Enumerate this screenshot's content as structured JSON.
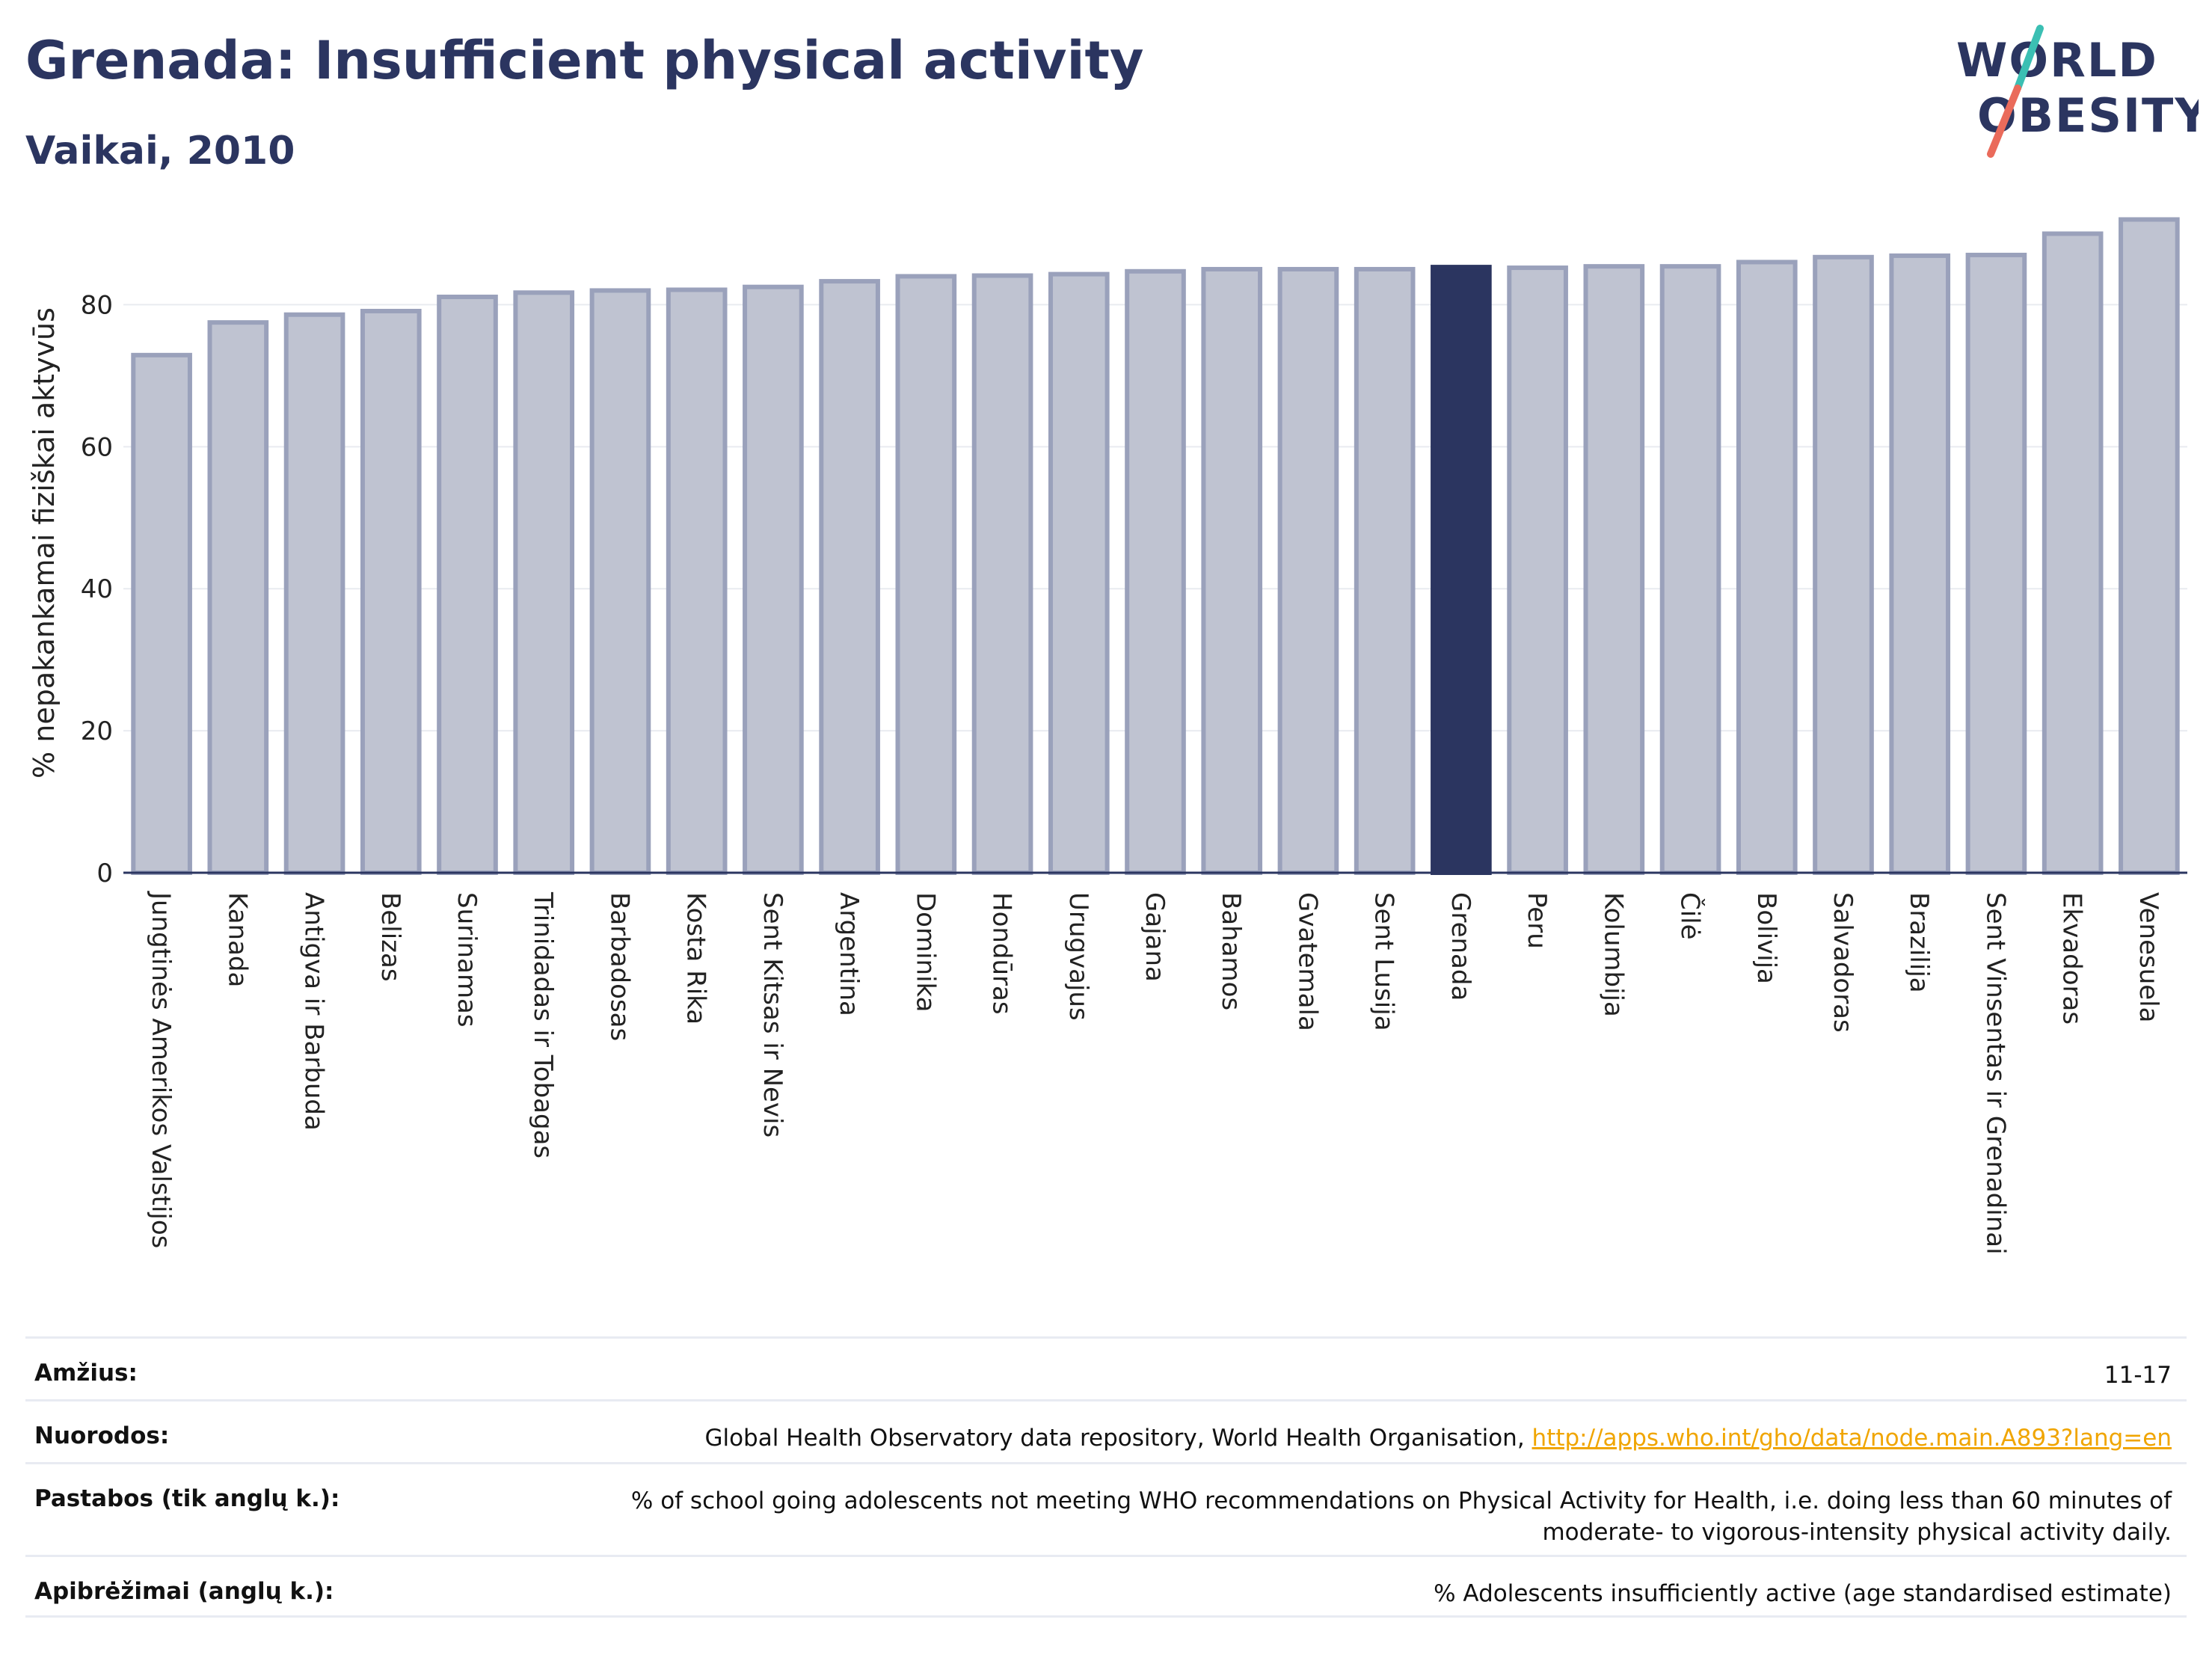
{
  "header": {
    "title": "Grenada: Insufficient physical activity",
    "subtitle": "Vaikai, 2010"
  },
  "logo": {
    "line1": "WORLD",
    "line2": "OBESITY",
    "icon": "world-obesity-logo"
  },
  "colors": {
    "highlight": "#2b3560",
    "bar_fill": "#bfc3d1",
    "bar_stroke": "#9aa1bb",
    "text": "#2b3560",
    "link": "#f0a500"
  },
  "chart_data": {
    "type": "bar",
    "ylabel": "% nepakankamai fiziškai aktyvūs",
    "ylim": [
      0,
      95
    ],
    "yticks": [
      0,
      20,
      40,
      60,
      80
    ],
    "grid": true,
    "highlight": "Grenada",
    "categories": [
      "Jungtinės Amerikos Valstijos",
      "Kanada",
      "Antigva ir Barbuda",
      "Belizas",
      "Surinamas",
      "Trinidadas ir Tobagas",
      "Barbadosas",
      "Kosta Rika",
      "Sent Kitsas ir Nevis",
      "Argentina",
      "Dominika",
      "Hondūras",
      "Urugvajus",
      "Gajana",
      "Bahamos",
      "Gvatemala",
      "Sent Lusija",
      "Grenada",
      "Peru",
      "Kolumbija",
      "Čilė",
      "Bolivija",
      "Salvadoras",
      "Brazilija",
      "Sent Vinsentas ir Grenadinai",
      "Ekvadoras",
      "Venesuela"
    ],
    "values": [
      72.9,
      77.5,
      78.6,
      79.1,
      81.1,
      81.7,
      82.0,
      82.1,
      82.5,
      83.3,
      84.0,
      84.1,
      84.3,
      84.7,
      85.0,
      85.0,
      85.0,
      85.3,
      85.2,
      85.4,
      85.4,
      86.0,
      86.7,
      86.9,
      87.0,
      90.0,
      92.0
    ]
  },
  "footer": {
    "rows": [
      {
        "label": "Amžius:",
        "value": "11-17"
      },
      {
        "label": "Nuorodos:",
        "value": "Global Health Observatory data repository, World Health Organisation,",
        "link": "http://apps.who.int/gho/data/node.main.A893?lang=en"
      },
      {
        "label": "Pastabos (tik anglų k.):",
        "value_line1": "% of school going adolescents not meeting WHO recommendations on Physical Activity for Health, i.e. doing less than 60 minutes of",
        "value_line2": "moderate- to vigorous-intensity physical activity daily."
      },
      {
        "label": "Apibrėžimai (anglų k.):",
        "value": "% Adolescents insufficiently active (age standardised estimate)"
      }
    ]
  }
}
